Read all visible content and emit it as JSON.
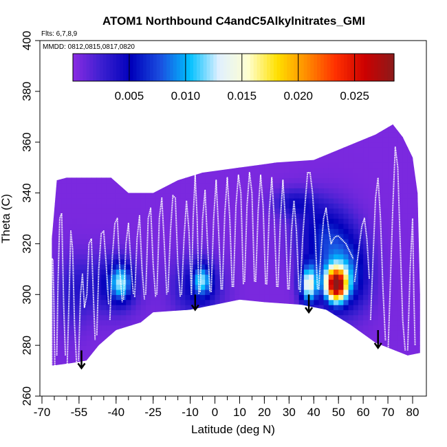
{
  "chart_data": {
    "type": "heatmap",
    "title": "ATOM1 Northbound C4andC5Alkylnitrates_GMI",
    "flights_label": "Flts: 6,7,8,9",
    "dates_label": "MMDD: 0812,0815,0817,0820",
    "xlabel": "Latitude (deg N)",
    "ylabel": "Theta (C)",
    "xlim": [
      -70,
      85
    ],
    "ylim": [
      260,
      400
    ],
    "x_ticks": [
      -70,
      -55,
      -40,
      -25,
      -10,
      0,
      10,
      20,
      30,
      40,
      50,
      60,
      70,
      80
    ],
    "x_tick_labels": [
      "-70",
      "-55",
      "-40",
      "-25",
      "-10",
      "0",
      "10",
      "20",
      "30",
      "40",
      "50",
      "60",
      "70",
      "80"
    ],
    "x_minor_step": 5,
    "y_ticks": [
      260,
      280,
      300,
      320,
      340,
      360,
      380,
      400
    ],
    "y_tick_labels": [
      "260",
      "280",
      "300",
      "320",
      "340",
      "360",
      "380",
      "400"
    ],
    "colorbar": {
      "range": [
        0,
        0.0285
      ],
      "ticks": [
        0.005,
        0.01,
        0.015,
        0.02,
        0.025
      ],
      "tick_labels": [
        "0.005",
        "0.010",
        "0.015",
        "0.020",
        "0.025"
      ],
      "colors": [
        "#8a2be2",
        "#3a1fd0",
        "#0000bb",
        "#1a4fe0",
        "#00c0ff",
        "#e0f0ff",
        "#ffffd0",
        "#ffe000",
        "#ff8c00",
        "#ff3000",
        "#cc0000",
        "#8b1a1a"
      ]
    },
    "background_value": 0.0005,
    "curtain": {
      "upper_edge": [
        [
          -66,
          322
        ],
        [
          -64,
          345
        ],
        [
          -60,
          346
        ],
        [
          -50,
          346
        ],
        [
          -42,
          346
        ],
        [
          -35,
          340
        ],
        [
          -25,
          340
        ],
        [
          -15,
          345
        ],
        [
          -5,
          348
        ],
        [
          10,
          350
        ],
        [
          25,
          352
        ],
        [
          40,
          353
        ],
        [
          55,
          359
        ],
        [
          65,
          363
        ],
        [
          72,
          367
        ],
        [
          76,
          362
        ],
        [
          80,
          354
        ],
        [
          82,
          340
        ],
        [
          83,
          300
        ],
        [
          83,
          277
        ]
      ],
      "lower_edge": [
        [
          83,
          277
        ],
        [
          78,
          276
        ],
        [
          65,
          281
        ],
        [
          55,
          288
        ],
        [
          45,
          294
        ],
        [
          35,
          296
        ],
        [
          20,
          297
        ],
        [
          10,
          298
        ],
        [
          0,
          296
        ],
        [
          -10,
          294
        ],
        [
          -25,
          293
        ],
        [
          -30,
          289
        ],
        [
          -40,
          286
        ],
        [
          -47,
          280
        ],
        [
          -52,
          274
        ],
        [
          -58,
          273
        ],
        [
          -66,
          272
        ]
      ]
    },
    "blobs": [
      {
        "lat": 49,
        "theta": 304,
        "peak": 0.024,
        "sx": 3.0,
        "sy": 4.5
      },
      {
        "lat": 38,
        "theta": 304,
        "peak": 0.013,
        "sx": 2.5,
        "sy": 5.5
      },
      {
        "lat": 52,
        "theta": 308,
        "peak": 0.008,
        "sx": 7.0,
        "sy": 10.0
      },
      {
        "lat": 44,
        "theta": 324,
        "peak": 0.005,
        "sx": 8.0,
        "sy": 9.0
      },
      {
        "lat": -5,
        "theta": 306,
        "peak": 0.0075,
        "sx": 2.5,
        "sy": 4.0
      },
      {
        "lat": -7,
        "theta": 303,
        "peak": 0.0045,
        "sx": 7.0,
        "sy": 8.0
      },
      {
        "lat": -38,
        "theta": 305,
        "peak": 0.0085,
        "sx": 3.0,
        "sy": 5.0
      },
      {
        "lat": -42,
        "theta": 304,
        "peak": 0.004,
        "sx": 8.0,
        "sy": 8.0
      },
      {
        "lat": 32,
        "theta": 336,
        "peak": 0.0035,
        "sx": 6.0,
        "sy": 4.0
      },
      {
        "lat": -58,
        "theta": 300,
        "peak": 0.0025,
        "sx": 5.0,
        "sy": 10.0
      }
    ],
    "flight_tracks": [
      [
        [
          -66.0,
          272
        ],
        [
          -66.0,
          314
        ],
        [
          -65.6,
          314
        ],
        [
          -65.2,
          300
        ],
        [
          -64.8,
          272
        ]
      ],
      [
        [
          -64.0,
          276
        ],
        [
          -63.5,
          305
        ],
        [
          -62.8,
          330
        ],
        [
          -62.0,
          332
        ],
        [
          -61.2,
          296
        ],
        [
          -60.5,
          276
        ]
      ],
      [
        [
          -59.8,
          272
        ],
        [
          -59.0,
          300
        ],
        [
          -58.3,
          325
        ],
        [
          -57.6,
          318
        ],
        [
          -56.8,
          288
        ],
        [
          -56.0,
          273
        ]
      ],
      [
        [
          -55.2,
          274
        ],
        [
          -54.4,
          300
        ],
        [
          -53.6,
          308
        ],
        [
          -52.8,
          295
        ],
        [
          -51.8,
          300
        ],
        [
          -51.0,
          320
        ],
        [
          -50.0,
          322
        ],
        [
          -49.2,
          300
        ],
        [
          -48.5,
          282
        ]
      ],
      [
        [
          -47.8,
          284
        ],
        [
          -47.0,
          310
        ],
        [
          -46.0,
          324
        ],
        [
          -45.0,
          325
        ],
        [
          -44.0,
          312
        ],
        [
          -43.0,
          296
        ]
      ],
      [
        [
          -42.5,
          290
        ],
        [
          -41.5,
          315
        ],
        [
          -40.5,
          328
        ],
        [
          -39.5,
          330
        ],
        [
          -38.5,
          310
        ],
        [
          -37.5,
          297
        ]
      ],
      [
        [
          -37.0,
          298
        ],
        [
          -36.0,
          320
        ],
        [
          -35.0,
          328
        ],
        [
          -34.0,
          312
        ],
        [
          -33.0,
          300
        ]
      ],
      [
        [
          -32.5,
          299
        ],
        [
          -31.5,
          322
        ],
        [
          -30.5,
          331
        ],
        [
          -29.5,
          310
        ],
        [
          -28.5,
          298
        ]
      ],
      [
        [
          -28.0,
          300
        ],
        [
          -27.0,
          330
        ],
        [
          -26.0,
          334
        ],
        [
          -25.0,
          312
        ],
        [
          -24.0,
          299
        ]
      ],
      [
        [
          -23.5,
          300
        ],
        [
          -22.5,
          330
        ],
        [
          -21.5,
          338
        ],
        [
          -20.5,
          320
        ],
        [
          -19.5,
          300
        ]
      ],
      [
        [
          -19.0,
          301
        ],
        [
          -18.0,
          325
        ],
        [
          -17.0,
          339
        ],
        [
          -16.0,
          338
        ],
        [
          -15.0,
          312
        ],
        [
          -14.0,
          299
        ]
      ],
      [
        [
          -13.5,
          300
        ],
        [
          -12.5,
          322
        ],
        [
          -11.5,
          337
        ],
        [
          -10.5,
          325
        ],
        [
          -9.5,
          300
        ]
      ],
      [
        [
          -9.5,
          300
        ],
        [
          -8.8,
          330
        ],
        [
          -8.0,
          347
        ],
        [
          -7.2,
          330
        ],
        [
          -6.5,
          300
        ]
      ],
      [
        [
          -6.0,
          301
        ],
        [
          -5.0,
          330
        ],
        [
          -4.0,
          341
        ],
        [
          -3.0,
          320
        ],
        [
          -2.0,
          301
        ]
      ],
      [
        [
          -1.5,
          301
        ],
        [
          -0.5,
          330
        ],
        [
          0.5,
          345
        ],
        [
          1.5,
          325
        ],
        [
          2.5,
          302
        ]
      ],
      [
        [
          3.0,
          302
        ],
        [
          4.0,
          332
        ],
        [
          5.0,
          346
        ],
        [
          6.0,
          330
        ],
        [
          7.0,
          303
        ]
      ],
      [
        [
          7.5,
          303
        ],
        [
          8.5,
          335
        ],
        [
          9.5,
          347
        ],
        [
          10.5,
          340
        ],
        [
          11.5,
          304
        ]
      ],
      [
        [
          12.0,
          305
        ],
        [
          13.0,
          335
        ],
        [
          14.0,
          348
        ],
        [
          15.0,
          340
        ],
        [
          16.0,
          305
        ]
      ],
      [
        [
          16.5,
          305
        ],
        [
          17.5,
          333
        ],
        [
          18.5,
          347
        ],
        [
          19.5,
          335
        ],
        [
          20.5,
          304
        ]
      ],
      [
        [
          21.0,
          304
        ],
        [
          22.0,
          333
        ],
        [
          23.0,
          346
        ],
        [
          24.0,
          330
        ],
        [
          25.0,
          303
        ]
      ],
      [
        [
          25.5,
          303
        ],
        [
          26.5,
          330
        ],
        [
          27.5,
          345
        ],
        [
          28.5,
          330
        ],
        [
          29.5,
          302
        ]
      ],
      [
        [
          30.0,
          302
        ],
        [
          31.0,
          325
        ],
        [
          32.0,
          337
        ],
        [
          33.0,
          325
        ],
        [
          34.0,
          302
        ]
      ],
      [
        [
          34.5,
          301
        ],
        [
          35.5,
          322
        ],
        [
          36.5,
          336
        ],
        [
          37.5,
          348
        ],
        [
          38.5,
          348
        ],
        [
          39.5,
          340
        ],
        [
          40.5,
          325
        ],
        [
          41.5,
          302
        ]
      ],
      [
        [
          42.0,
          302
        ],
        [
          43.0,
          318
        ],
        [
          44.0,
          330
        ],
        [
          45.0,
          334
        ],
        [
          46.0,
          326
        ],
        [
          47.0,
          320
        ],
        [
          48.0,
          322
        ],
        [
          49.0,
          323
        ],
        [
          50.0,
          323
        ],
        [
          51.0,
          322
        ],
        [
          52.0,
          321
        ],
        [
          53.0,
          320
        ],
        [
          54.0,
          318
        ],
        [
          55.0,
          316
        ],
        [
          56.0,
          314
        ]
      ],
      [
        [
          56.5,
          305
        ],
        [
          57.5,
          312
        ],
        [
          58.5,
          320
        ],
        [
          59.5,
          327
        ],
        [
          60.5,
          330
        ],
        [
          61.5,
          322
        ],
        [
          62.5,
          306
        ]
      ],
      [
        [
          63.0,
          290
        ],
        [
          64.0,
          315
        ],
        [
          65.0,
          338
        ],
        [
          66.0,
          346
        ],
        [
          67.0,
          330
        ],
        [
          68.0,
          302
        ],
        [
          69.0,
          282
        ]
      ],
      [
        [
          70.0,
          276
        ],
        [
          71.0,
          305
        ],
        [
          72.0,
          335
        ],
        [
          73.0,
          358
        ],
        [
          74.0,
          350
        ],
        [
          75.0,
          320
        ],
        [
          76.0,
          290
        ],
        [
          77.0,
          278
        ]
      ],
      [
        [
          78.0,
          278
        ],
        [
          79.0,
          310
        ],
        [
          80.0,
          330
        ],
        [
          80.5,
          300
        ],
        [
          81.0,
          280
        ]
      ]
    ],
    "arrows": [
      {
        "lat": -54,
        "theta_from": 278,
        "theta_to": 271
      },
      {
        "lat": -8,
        "theta_from": 300,
        "theta_to": 294
      },
      {
        "lat": 38,
        "theta_from": 300,
        "theta_to": 293
      },
      {
        "lat": 66,
        "theta_from": 286,
        "theta_to": 279
      }
    ]
  }
}
